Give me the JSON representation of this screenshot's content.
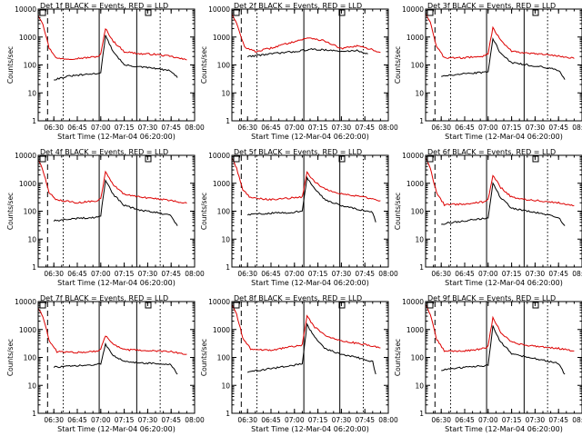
{
  "chart_data": {
    "type": "line",
    "layout": "3x3 grid",
    "y_scale": "log",
    "ylim": [
      1,
      10000
    ],
    "y_ticks": [
      1,
      10,
      100,
      1000,
      10000
    ],
    "x_ticks": [
      "06:30",
      "06:45",
      "07:00",
      "07:15",
      "07:30",
      "07:45",
      "08:00"
    ],
    "ylabel": "Counts/sec",
    "xlabel": "Start Time (12-Mar-04 06:20:00)",
    "colors": {
      "events": "#000000",
      "lld": "#dd0000",
      "axes": "#000000"
    },
    "series_names": {
      "events": "Events",
      "lld": "LLD"
    },
    "panels": [
      {
        "title": "Det 1f BLACK = Events, RED = LLD",
        "events": {
          "x": [
            "06:30",
            "06:40",
            "06:50",
            "06:58",
            "07:00",
            "07:03",
            "07:08",
            "07:15",
            "07:25",
            "07:35",
            "07:45",
            "07:49"
          ],
          "y": [
            30,
            40,
            45,
            50,
            55,
            1100,
            300,
            100,
            85,
            75,
            60,
            35
          ]
        },
        "lld": {
          "x": [
            "06:20",
            "06:23",
            "06:27",
            "06:32",
            "06:40",
            "06:50",
            "06:58",
            "07:00",
            "07:03",
            "07:08",
            "07:15",
            "07:25",
            "07:35",
            "07:45",
            "07:55"
          ],
          "y": [
            6000,
            3000,
            400,
            170,
            165,
            180,
            200,
            240,
            2000,
            700,
            300,
            250,
            240,
            200,
            150
          ]
        }
      },
      {
        "title": "Det 2f BLACK = Events, RED = LLD",
        "events": {
          "x": [
            "06:30",
            "06:45",
            "07:00",
            "07:10",
            "07:20",
            "07:30",
            "07:40",
            "07:47"
          ],
          "y": [
            200,
            250,
            300,
            360,
            350,
            300,
            330,
            250
          ]
        },
        "lld": {
          "x": [
            "06:20",
            "06:23",
            "06:28",
            "06:35",
            "06:45",
            "07:00",
            "07:10",
            "07:20",
            "07:30",
            "07:40",
            "07:50",
            "07:55"
          ],
          "y": [
            7000,
            3000,
            450,
            300,
            400,
            700,
            950,
            700,
            380,
            480,
            350,
            280
          ]
        }
      },
      {
        "title": "Det 3f BLACK = Events, RED = LLD",
        "events": {
          "x": [
            "06:30",
            "06:45",
            "06:58",
            "07:00",
            "07:03",
            "07:08",
            "07:15",
            "07:25",
            "07:35",
            "07:45",
            "07:49"
          ],
          "y": [
            40,
            48,
            55,
            60,
            900,
            250,
            120,
            100,
            85,
            65,
            30
          ]
        },
        "lld": {
          "x": [
            "06:20",
            "06:23",
            "06:27",
            "06:32",
            "06:45",
            "06:58",
            "07:00",
            "07:03",
            "07:08",
            "07:15",
            "07:25",
            "07:35",
            "07:45",
            "07:55"
          ],
          "y": [
            7000,
            3500,
            450,
            180,
            180,
            210,
            260,
            2200,
            750,
            320,
            260,
            240,
            210,
            170
          ]
        }
      },
      {
        "title": "Det 4f BLACK = Events, RED = LLD",
        "events": {
          "x": [
            "06:30",
            "06:45",
            "06:58",
            "07:00",
            "07:03",
            "07:08",
            "07:15",
            "07:25",
            "07:35",
            "07:45",
            "07:49"
          ],
          "y": [
            45,
            55,
            60,
            70,
            1300,
            400,
            160,
            110,
            90,
            70,
            30
          ]
        },
        "lld": {
          "x": [
            "06:20",
            "06:23",
            "06:27",
            "06:32",
            "06:45",
            "06:58",
            "07:00",
            "07:03",
            "07:08",
            "07:15",
            "07:25",
            "07:35",
            "07:45",
            "07:55"
          ],
          "y": [
            7000,
            3000,
            450,
            250,
            200,
            240,
            280,
            2500,
            900,
            400,
            320,
            280,
            240,
            190
          ]
        }
      },
      {
        "title": "Det 5f BLACK = Events, RED = LLD",
        "events": {
          "x": [
            "06:30",
            "06:45",
            "06:58",
            "07:05",
            "07:08",
            "07:13",
            "07:20",
            "07:30",
            "07:40",
            "07:50",
            "07:52"
          ],
          "y": [
            75,
            85,
            90,
            100,
            1600,
            600,
            250,
            160,
            120,
            90,
            40
          ]
        },
        "lld": {
          "x": [
            "06:20",
            "06:23",
            "06:27",
            "06:32",
            "06:45",
            "07:05",
            "07:08",
            "07:13",
            "07:20",
            "07:30",
            "07:40",
            "07:50",
            "07:55"
          ],
          "y": [
            8000,
            3500,
            600,
            300,
            260,
            320,
            2500,
            1100,
            600,
            420,
            350,
            280,
            240
          ]
        }
      },
      {
        "title": "Det 6f BLACK = Events, RED = LLD",
        "events": {
          "x": [
            "06:30",
            "06:45",
            "06:58",
            "07:00",
            "07:03",
            "07:08",
            "07:15",
            "07:25",
            "07:35",
            "07:45",
            "07:49"
          ],
          "y": [
            35,
            45,
            55,
            60,
            1000,
            300,
            130,
            100,
            80,
            60,
            30
          ]
        },
        "lld": {
          "x": [
            "06:20",
            "06:23",
            "06:27",
            "06:32",
            "06:45",
            "06:58",
            "07:00",
            "07:03",
            "07:08",
            "07:15",
            "07:25",
            "07:35",
            "07:45",
            "07:55"
          ],
          "y": [
            8000,
            3500,
            450,
            170,
            180,
            220,
            260,
            2000,
            700,
            320,
            260,
            230,
            200,
            160
          ]
        }
      },
      {
        "title": "Det 7f BLACK = Events, RED = LLD",
        "events": {
          "x": [
            "06:30",
            "06:45",
            "06:58",
            "07:00",
            "07:03",
            "07:08",
            "07:15",
            "07:25",
            "07:35",
            "07:45",
            "07:49"
          ],
          "y": [
            45,
            50,
            55,
            60,
            300,
            120,
            70,
            65,
            60,
            55,
            25
          ]
        },
        "lld": {
          "x": [
            "06:20",
            "06:23",
            "06:27",
            "06:32",
            "06:45",
            "06:58",
            "07:00",
            "07:03",
            "07:08",
            "07:15",
            "07:25",
            "07:35",
            "07:45",
            "07:55"
          ],
          "y": [
            6000,
            3000,
            400,
            160,
            150,
            170,
            200,
            600,
            300,
            190,
            180,
            170,
            160,
            130
          ]
        }
      },
      {
        "title": "Det 8f BLACK = Events, RED = LLD",
        "events": {
          "x": [
            "06:30",
            "06:45",
            "06:58",
            "07:05",
            "07:08",
            "07:13",
            "07:20",
            "07:30",
            "07:40",
            "07:50",
            "07:52"
          ],
          "y": [
            30,
            40,
            50,
            60,
            1500,
            500,
            200,
            130,
            100,
            70,
            25
          ]
        },
        "lld": {
          "x": [
            "06:20",
            "06:23",
            "06:27",
            "06:32",
            "06:45",
            "07:05",
            "07:08",
            "07:13",
            "07:20",
            "07:30",
            "07:40",
            "07:50",
            "07:55"
          ],
          "y": [
            8000,
            3500,
            500,
            200,
            180,
            280,
            3000,
            1200,
            600,
            400,
            320,
            260,
            220
          ]
        }
      },
      {
        "title": "Det 9f BLACK = Events, RED = LLD",
        "events": {
          "x": [
            "06:30",
            "06:45",
            "06:58",
            "07:00",
            "07:03",
            "07:08",
            "07:15",
            "07:25",
            "07:35",
            "07:45",
            "07:49"
          ],
          "y": [
            35,
            45,
            50,
            55,
            1300,
            350,
            140,
            100,
            80,
            60,
            25
          ]
        },
        "lld": {
          "x": [
            "06:20",
            "06:23",
            "06:27",
            "06:32",
            "06:45",
            "06:58",
            "07:00",
            "07:03",
            "07:08",
            "07:15",
            "07:25",
            "07:35",
            "07:45",
            "07:55"
          ],
          "y": [
            8000,
            3500,
            450,
            170,
            170,
            210,
            260,
            2700,
            800,
            350,
            270,
            240,
            210,
            170
          ]
        }
      }
    ]
  }
}
